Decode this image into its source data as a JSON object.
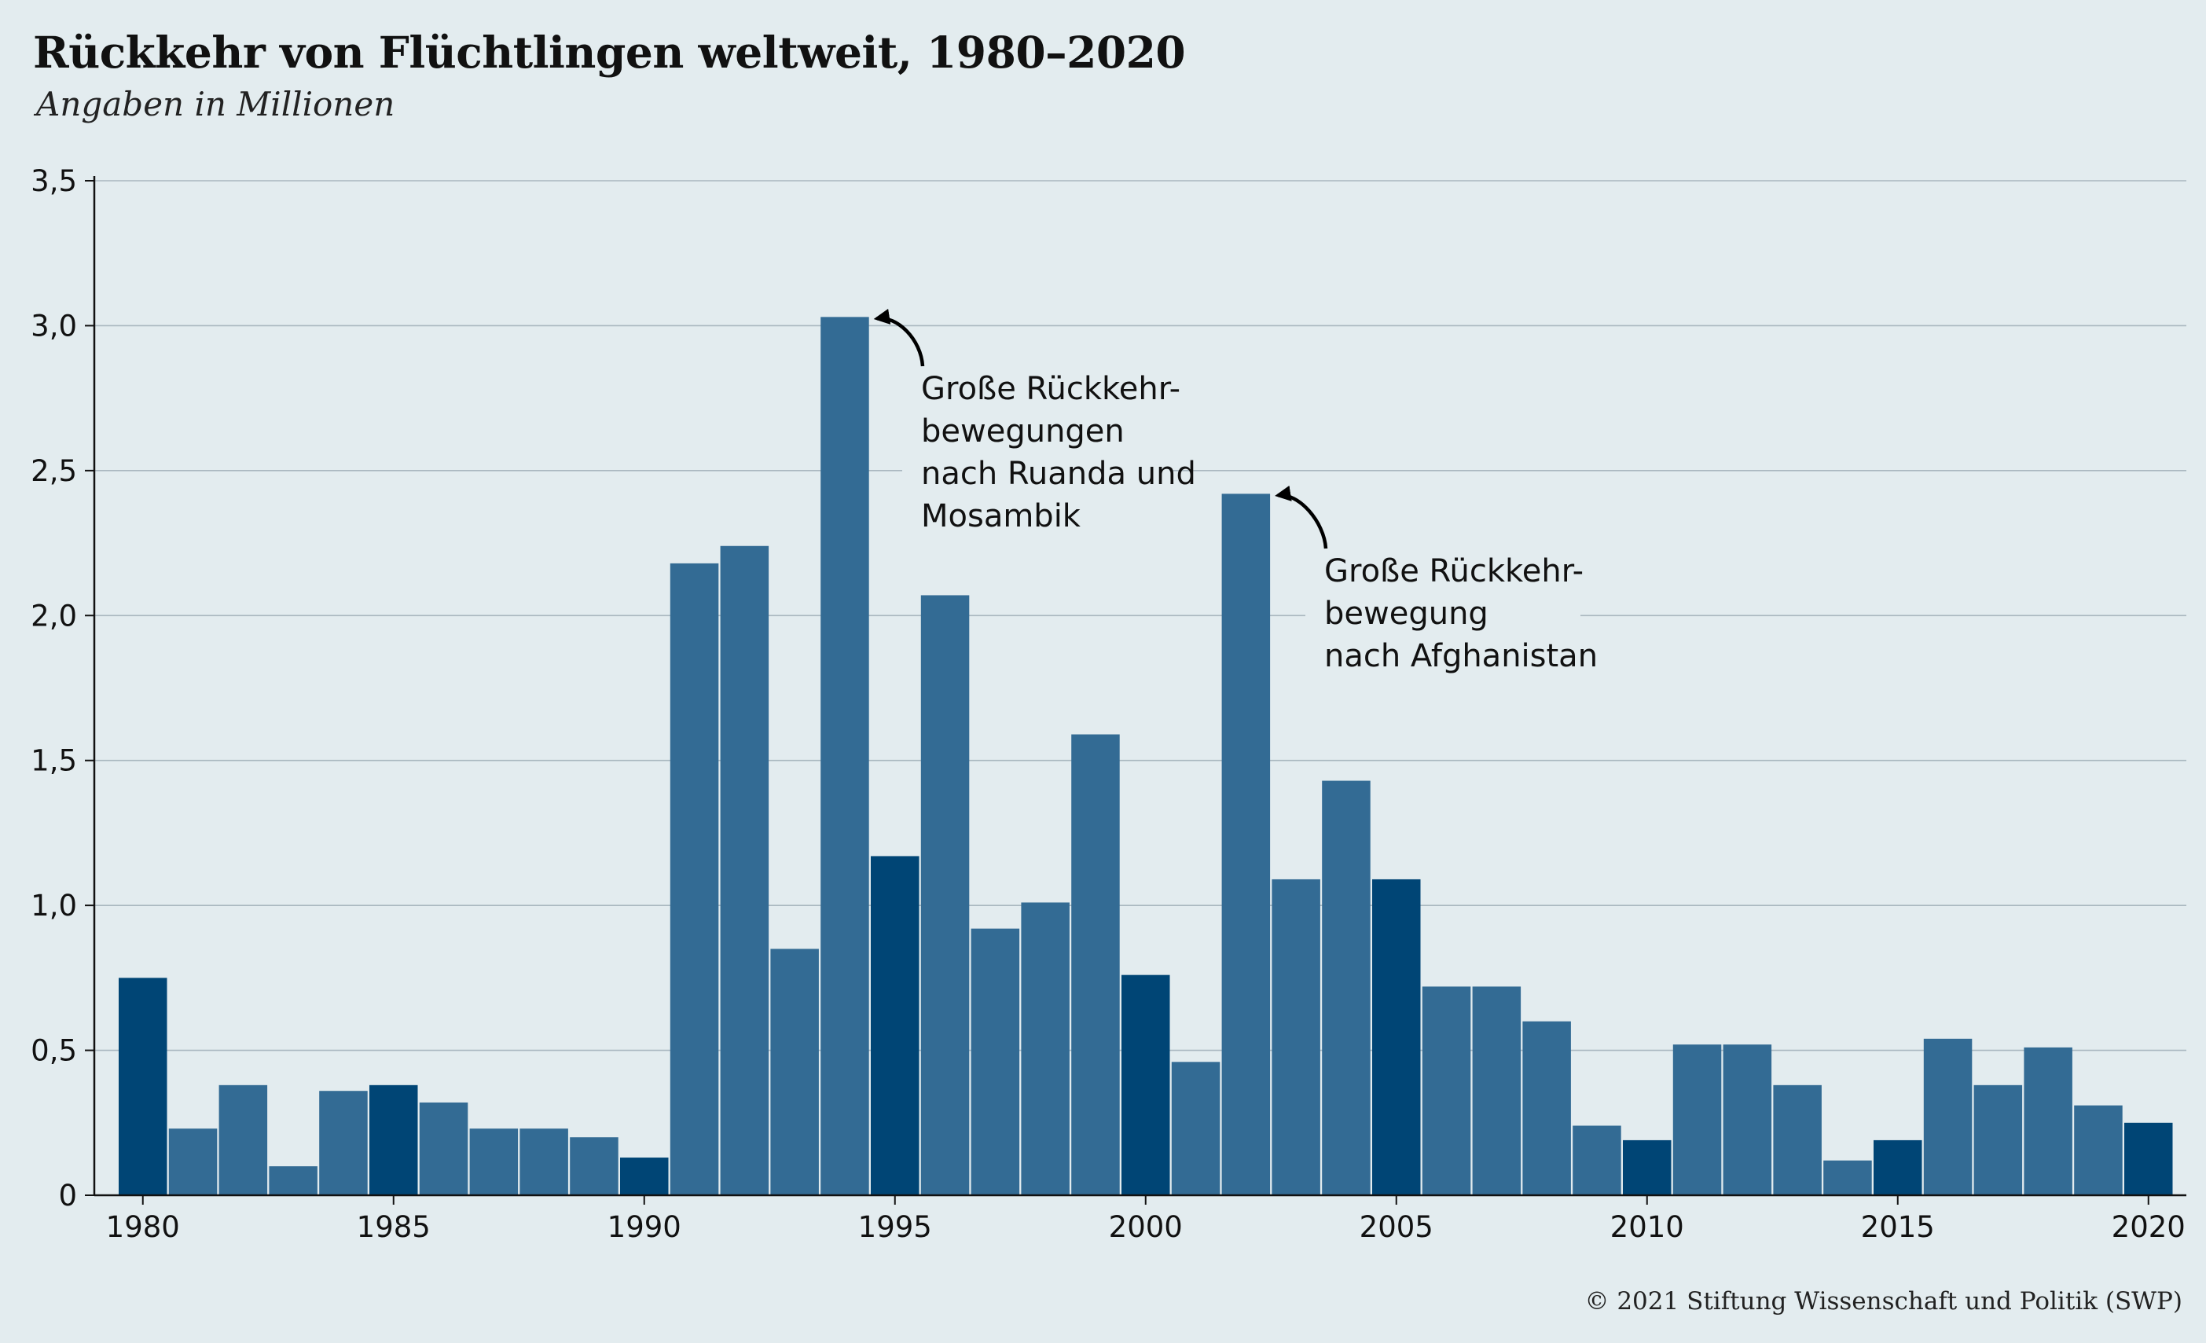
{
  "title": "Rückkehr von Flüchtlingen weltweit, 1980–2020",
  "subtitle": "Angaben in Millionen",
  "copyright": "© 2021 Stiftung Wissenschaft und Politik (SWP)",
  "colors": {
    "background": "#e3ecef",
    "bar": "#336b94",
    "bar_highlight": "#004575",
    "grid": "#a9b7bf",
    "axis": "#111111"
  },
  "chart_data": {
    "type": "bar",
    "categories": [
      1980,
      1981,
      1982,
      1983,
      1984,
      1985,
      1986,
      1987,
      1988,
      1989,
      1990,
      1991,
      1992,
      1993,
      1994,
      1995,
      1996,
      1997,
      1998,
      1999,
      2000,
      2001,
      2002,
      2003,
      2004,
      2005,
      2006,
      2007,
      2008,
      2009,
      2010,
      2011,
      2012,
      2013,
      2014,
      2015,
      2016,
      2017,
      2018,
      2019,
      2020
    ],
    "values": [
      0.75,
      0.23,
      0.38,
      0.1,
      0.36,
      0.38,
      0.32,
      0.23,
      0.23,
      0.2,
      0.13,
      2.18,
      2.24,
      0.85,
      3.03,
      1.17,
      2.07,
      0.92,
      1.01,
      1.59,
      0.76,
      0.46,
      2.42,
      1.09,
      1.43,
      1.09,
      0.72,
      0.72,
      0.6,
      0.24,
      0.19,
      0.52,
      0.52,
      0.38,
      0.12,
      0.19,
      0.54,
      0.38,
      0.51,
      0.31,
      0.25
    ],
    "highlighted_categories": [
      1980,
      1985,
      1990,
      1995,
      2000,
      2005,
      2010,
      2015,
      2020
    ],
    "y_ticks": [
      0,
      0.5,
      1.0,
      1.5,
      2.0,
      2.5,
      3.0,
      3.5
    ],
    "y_tick_labels": [
      "0",
      "0,5",
      "1,0",
      "1,5",
      "2,0",
      "2,5",
      "3,0",
      "3,5"
    ],
    "x_ticks": [
      1980,
      1985,
      1990,
      1995,
      2000,
      2005,
      2010,
      2015,
      2020
    ],
    "x_tick_labels": [
      "1980",
      "1985",
      "1990",
      "1995",
      "2000",
      "2005",
      "2010",
      "2015",
      "2020"
    ],
    "ylim": [
      0,
      3.5
    ],
    "grid": true,
    "annotations": [
      {
        "lines": [
          "Große Rückkehr-",
          "bewegungen",
          "nach Ruanda und",
          "Mosambik"
        ],
        "target_category": 1994,
        "target_value": 3.03
      },
      {
        "lines": [
          "Große Rückkehr-",
          "bewegung",
          "nach Afghanistan"
        ],
        "target_category": 2002,
        "target_value": 2.42
      }
    ]
  }
}
